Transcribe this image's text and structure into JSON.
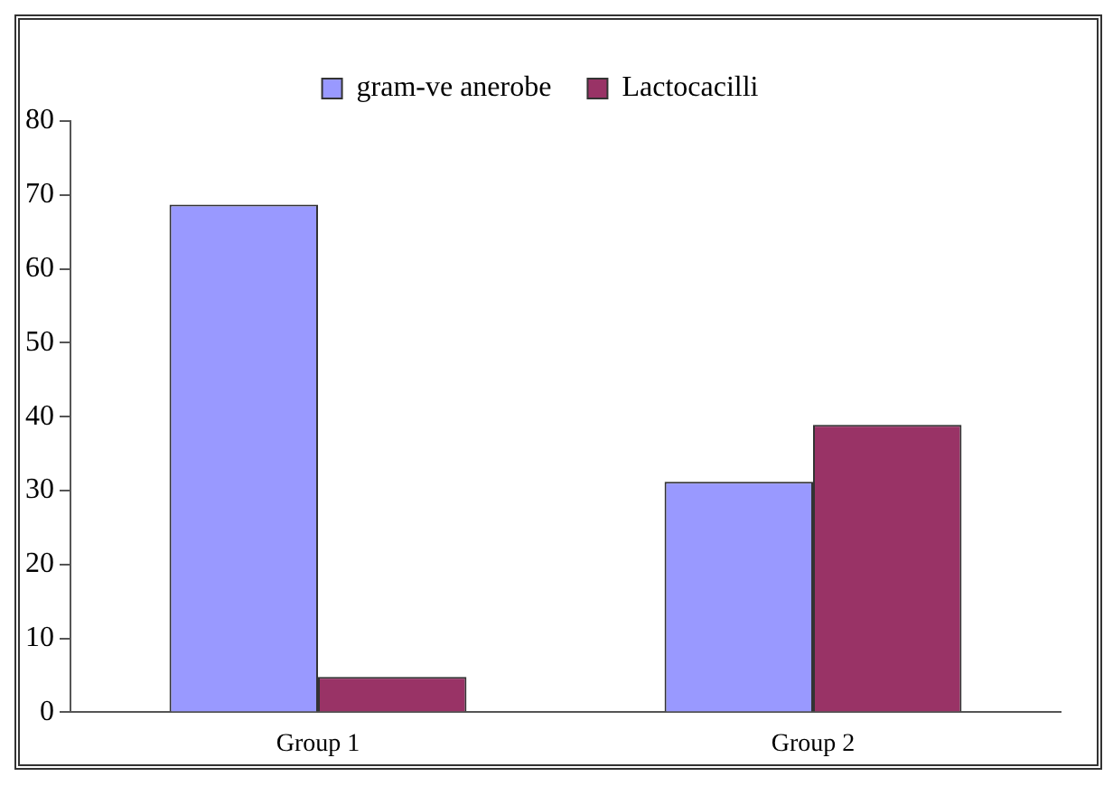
{
  "chart_data": {
    "type": "bar",
    "categories": [
      "Group 1",
      "Group 2"
    ],
    "series": [
      {
        "name": "gram-ve anerobe",
        "color": "#9999ff",
        "values": [
          68.7,
          31.2
        ]
      },
      {
        "name": "Lactocacilli",
        "color": "#993366",
        "values": [
          4.8,
          38.9
        ]
      }
    ],
    "ylim": [
      0,
      80
    ],
    "yticks": [
      0,
      10,
      20,
      30,
      40,
      50,
      60,
      70,
      80
    ],
    "grid": false,
    "legend": "top"
  }
}
